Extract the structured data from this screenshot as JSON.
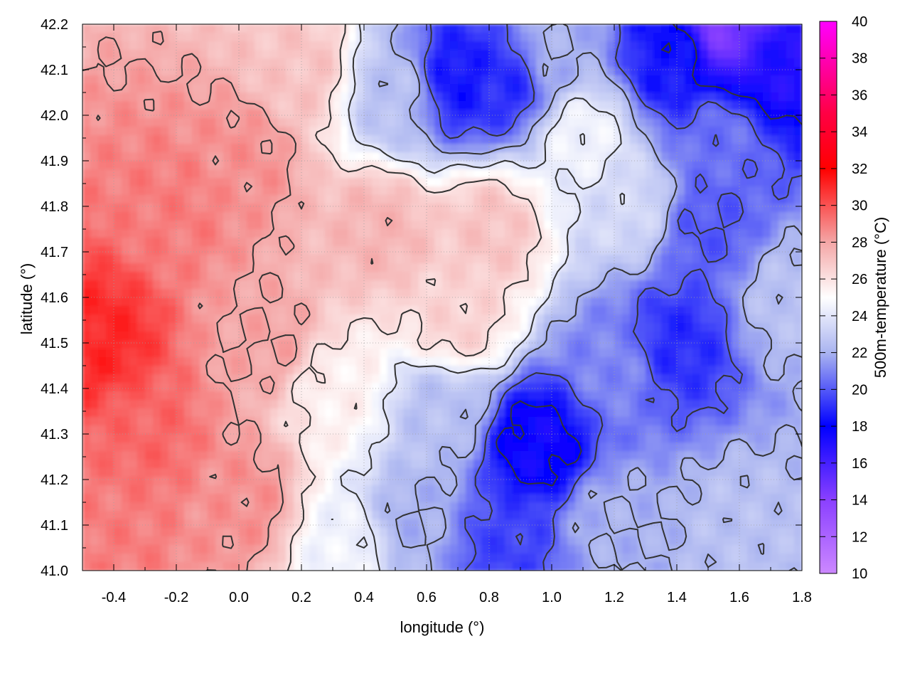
{
  "chart_data": {
    "type": "heatmap",
    "title": "",
    "xlabel": "longitude (°)",
    "ylabel": "latitude (°)",
    "colorbar_label": "500m-temperature (°C)",
    "xlim": [
      -0.5,
      1.8
    ],
    "ylim": [
      41.0,
      42.2
    ],
    "xticks": [
      "-0.4",
      "-0.2",
      "0.0",
      "0.2",
      "0.4",
      "0.6",
      "0.8",
      "1.0",
      "1.2",
      "1.4",
      "1.6",
      "1.8"
    ],
    "xtick_values": [
      -0.4,
      -0.2,
      0.0,
      0.2,
      0.4,
      0.6,
      0.8,
      1.0,
      1.2,
      1.4,
      1.6,
      1.8
    ],
    "yticks": [
      "41.0",
      "41.1",
      "41.2",
      "41.3",
      "41.4",
      "41.5",
      "41.6",
      "41.7",
      "41.8",
      "41.9",
      "42.0",
      "42.1",
      "42.2"
    ],
    "ytick_values": [
      41.0,
      41.1,
      41.2,
      41.3,
      41.4,
      41.5,
      41.6,
      41.7,
      41.8,
      41.9,
      42.0,
      42.1,
      42.2
    ],
    "colorbar_range": [
      10,
      40
    ],
    "colorbar_ticks": [
      "10",
      "12",
      "14",
      "16",
      "18",
      "20",
      "22",
      "24",
      "26",
      "28",
      "30",
      "32",
      "34",
      "36",
      "38",
      "40"
    ],
    "colorbar_tick_values": [
      10,
      12,
      14,
      16,
      18,
      20,
      22,
      24,
      26,
      28,
      30,
      32,
      34,
      36,
      38,
      40
    ],
    "colormap": [
      {
        "value": 10,
        "color": "#cc88ff"
      },
      {
        "value": 14,
        "color": "#8a40ff"
      },
      {
        "value": 18,
        "color": "#0000ff"
      },
      {
        "value": 22,
        "color": "#aab4f0"
      },
      {
        "value": 25,
        "color": "#ffffff"
      },
      {
        "value": 28,
        "color": "#f4a6a6"
      },
      {
        "value": 32,
        "color": "#ff0000"
      },
      {
        "value": 35,
        "color": "#ff0044"
      },
      {
        "value": 40,
        "color": "#ff00ff"
      }
    ],
    "grid": true,
    "contour_color": "#333333",
    "field_samples": [
      {
        "lon": -0.45,
        "lat": 41.5,
        "temp": 31.0
      },
      {
        "lon": -0.3,
        "lat": 41.3,
        "temp": 29.5
      },
      {
        "lon": -0.2,
        "lat": 41.8,
        "temp": 29.0
      },
      {
        "lon": 0.0,
        "lat": 41.9,
        "temp": 28.5
      },
      {
        "lon": 0.1,
        "lat": 41.5,
        "temp": 28.0
      },
      {
        "lon": 0.0,
        "lat": 41.15,
        "temp": 28.5
      },
      {
        "lon": -0.4,
        "lat": 41.1,
        "temp": 29.0
      },
      {
        "lon": 0.2,
        "lat": 42.1,
        "temp": 27.0
      },
      {
        "lon": 0.45,
        "lat": 41.75,
        "temp": 27.5
      },
      {
        "lon": 0.8,
        "lat": 41.75,
        "temp": 27.0
      },
      {
        "lon": 0.7,
        "lat": 41.55,
        "temp": 26.5
      },
      {
        "lon": 0.3,
        "lat": 41.4,
        "temp": 25.5
      },
      {
        "lon": 0.35,
        "lat": 41.05,
        "temp": 24.5
      },
      {
        "lon": 0.55,
        "lat": 41.1,
        "temp": 22.0
      },
      {
        "lon": 0.65,
        "lat": 41.35,
        "temp": 22.5
      },
      {
        "lon": 0.95,
        "lat": 41.28,
        "temp": 17.5
      },
      {
        "lon": 0.85,
        "lat": 41.05,
        "temp": 19.5
      },
      {
        "lon": 1.2,
        "lat": 41.1,
        "temp": 22.0
      },
      {
        "lon": 1.6,
        "lat": 41.1,
        "temp": 22.5
      },
      {
        "lon": 1.2,
        "lat": 41.45,
        "temp": 21.0
      },
      {
        "lon": 1.4,
        "lat": 41.5,
        "temp": 19.0
      },
      {
        "lon": 1.5,
        "lat": 41.75,
        "temp": 20.0
      },
      {
        "lon": 1.75,
        "lat": 41.6,
        "temp": 22.5
      },
      {
        "lon": 1.25,
        "lat": 41.8,
        "temp": 23.5
      },
      {
        "lon": 1.1,
        "lat": 41.95,
        "temp": 24.5
      },
      {
        "lon": 0.85,
        "lat": 42.08,
        "temp": 19.0
      },
      {
        "lon": 0.7,
        "lat": 42.08,
        "temp": 18.5
      },
      {
        "lon": 0.5,
        "lat": 42.05,
        "temp": 22.5
      },
      {
        "lon": 1.0,
        "lat": 42.15,
        "temp": 22.0
      },
      {
        "lon": 1.4,
        "lat": 42.12,
        "temp": 18.5
      },
      {
        "lon": 1.55,
        "lat": 42.18,
        "temp": 14.5
      },
      {
        "lon": 1.7,
        "lat": 42.1,
        "temp": 17.0
      },
      {
        "lon": 1.55,
        "lat": 41.95,
        "temp": 20.5
      }
    ]
  }
}
